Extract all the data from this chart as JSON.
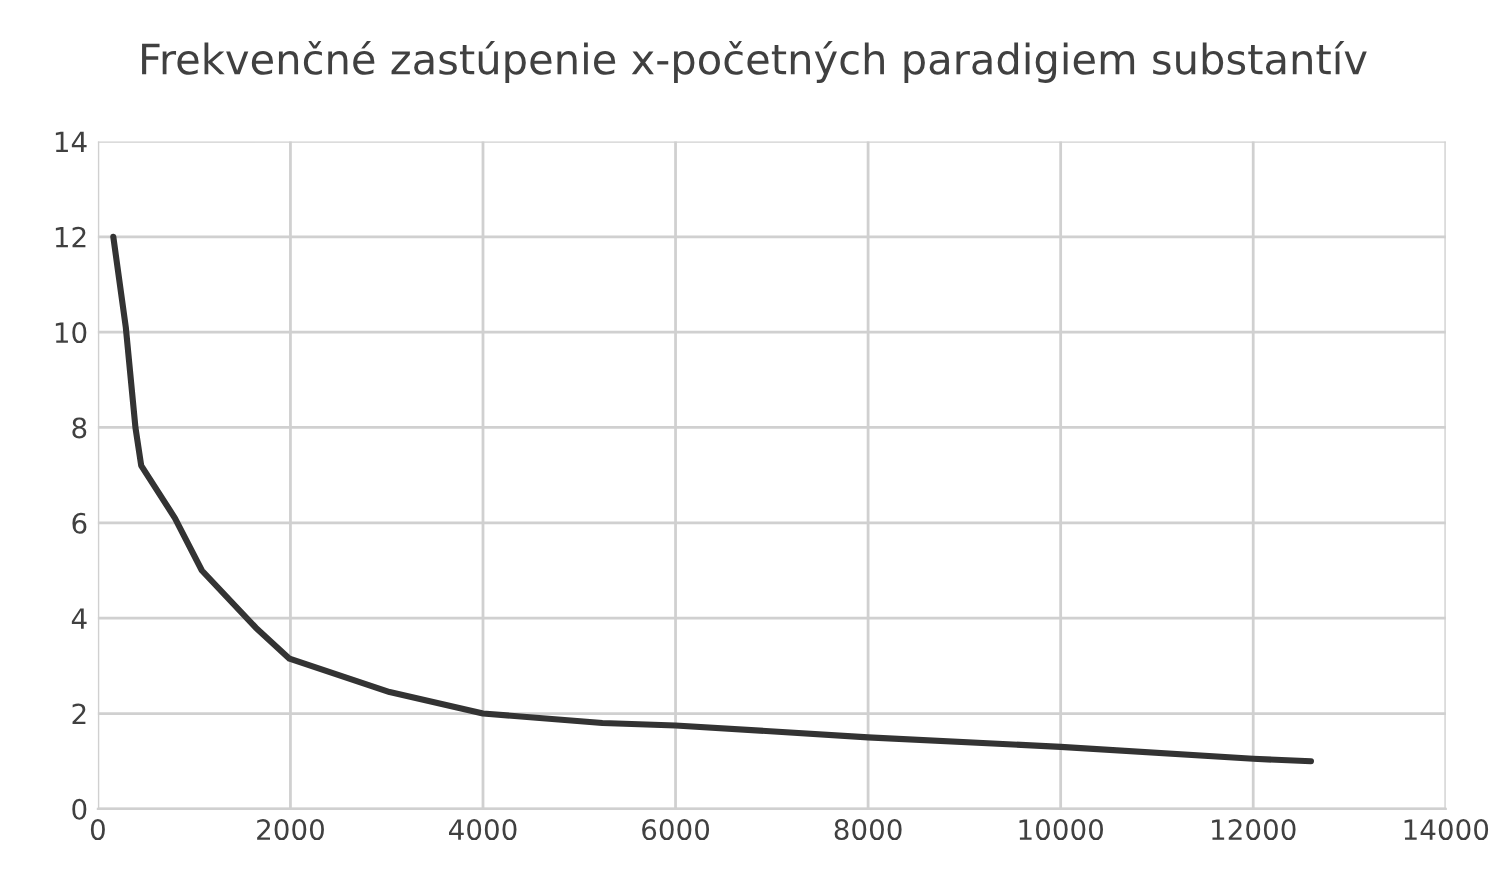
{
  "chart_data": {
    "type": "line",
    "title": "Frekvenčné zastúpenie x-početných paradigiem substantív",
    "series": [
      {
        "color": "#333333",
        "x": [
          160,
          290,
          390,
          450,
          800,
          1080,
          1640,
          1990,
          3030,
          4000,
          5240,
          6000,
          8000,
          10000,
          12000,
          12600
        ],
        "values": [
          12,
          10.1,
          8.0,
          7.2,
          6.1,
          5.0,
          3.8,
          3.15,
          2.45,
          2.0,
          1.8,
          1.75,
          1.5,
          1.3,
          1.05,
          1.0
        ]
      }
    ],
    "xlim": [
      0,
      14000
    ],
    "xticks": [
      0,
      2000,
      4000,
      6000,
      8000,
      10000,
      12000,
      14000
    ],
    "ylim": [
      0,
      14
    ],
    "yticks": [
      0,
      2,
      4,
      6,
      8,
      10,
      12,
      14
    ],
    "grid": true,
    "legend": false,
    "marker": "none",
    "line_style": "solid"
  }
}
